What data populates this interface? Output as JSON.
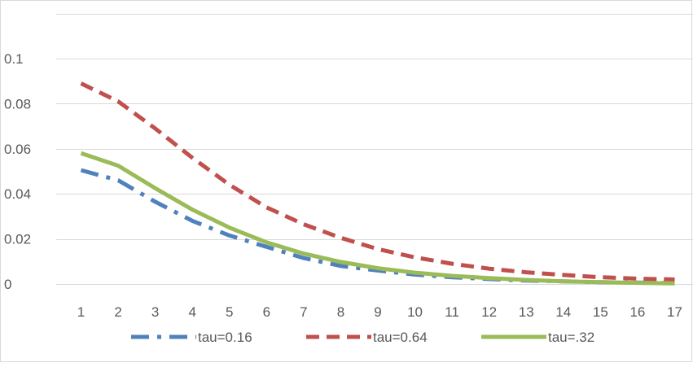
{
  "chart_data": {
    "type": "line",
    "title": "",
    "xlabel": "",
    "ylabel": "",
    "categories": [
      "1",
      "2",
      "3",
      "4",
      "5",
      "6",
      "7",
      "8",
      "9",
      "10",
      "11",
      "12",
      "13",
      "14",
      "15",
      "16",
      "17"
    ],
    "ylim": [
      0,
      0.12
    ],
    "yticks": [
      0,
      0.02,
      0.04,
      0.06,
      0.08,
      0.1
    ],
    "ytick_labels": [
      "0",
      "0.02",
      "0.04",
      "0.06",
      "0.08",
      "0.1"
    ],
    "grid": true,
    "legend_position": "bottom",
    "series": [
      {
        "name": "tau=0.16",
        "color": "#4f81bd",
        "style": "dash-dot",
        "values": [
          0.0505,
          0.046,
          0.0365,
          0.028,
          0.0215,
          0.0165,
          0.0115,
          0.008,
          0.006,
          0.0042,
          0.003,
          0.0022,
          0.0015,
          0.0012,
          0.0008,
          0.0006,
          0.0004
        ]
      },
      {
        "name": "tau=0.64",
        "color": "#c0504d",
        "style": "dash",
        "values": [
          0.089,
          0.081,
          0.069,
          0.056,
          0.044,
          0.034,
          0.0265,
          0.0205,
          0.0155,
          0.0118,
          0.009,
          0.0068,
          0.0052,
          0.004,
          0.003,
          0.0024,
          0.002
        ]
      },
      {
        "name": "tau=.32",
        "color": "#9bbb59",
        "style": "solid",
        "values": [
          0.058,
          0.0525,
          0.0425,
          0.033,
          0.025,
          0.0185,
          0.0135,
          0.0098,
          0.007,
          0.005,
          0.0036,
          0.0026,
          0.0018,
          0.0012,
          0.0008,
          0.0005,
          0.0003
        ]
      }
    ]
  }
}
